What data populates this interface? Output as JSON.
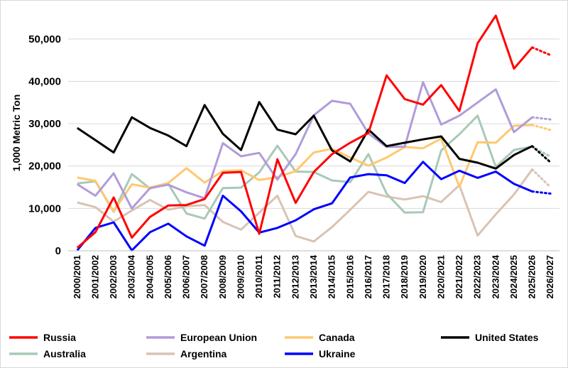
{
  "chart_data": {
    "type": "line",
    "ylabel": "1,000 Metric Ton",
    "xlabel": "",
    "ylim": [
      0,
      55000
    ],
    "yticks": [
      0,
      10000,
      20000,
      30000,
      40000,
      50000
    ],
    "ytick_labels": [
      "0",
      "10,000",
      "20,000",
      "30,000",
      "40,000",
      "50,000"
    ],
    "grid": "horizontal",
    "legend_position": "bottom",
    "categories": [
      "2000/2001",
      "2001/2002",
      "2002/2003",
      "2003/2004",
      "2004/2005",
      "2005/2006",
      "2006/2007",
      "2007/2008",
      "2008/2009",
      "2009/2010",
      "2010/2011",
      "2011/2012",
      "2012/2013",
      "2013/2014",
      "2014/2015",
      "2015/2016",
      "2016/2017",
      "2017/2018",
      "2018/2019",
      "2019/2020",
      "2020/2021",
      "2021/2022",
      "2022/2023",
      "2023/2024",
      "2024/2025",
      "2025/2026",
      "2026/2027"
    ],
    "forecast_note": "Final segment (2025/2026 to 2026/2027) drawn as dotted line",
    "series": [
      {
        "name": "Russia",
        "color": "#ff0000",
        "values": [
          700,
          4400,
          12600,
          3100,
          8000,
          10700,
          10800,
          12200,
          18400,
          18600,
          4000,
          21600,
          11300,
          18600,
          22800,
          25500,
          27800,
          41400,
          35800,
          34500,
          39100,
          33000,
          49000,
          55500,
          43000,
          48000,
          46200
        ]
      },
      {
        "name": "European Union",
        "color": "#b19cd9",
        "values": [
          15700,
          13000,
          18300,
          10000,
          14800,
          15600,
          13800,
          12400,
          25400,
          22300,
          23100,
          16800,
          22800,
          32000,
          35400,
          34700,
          27700,
          24500,
          24600,
          39800,
          29800,
          31900,
          35000,
          38100,
          28000,
          31500,
          31000
        ]
      },
      {
        "name": "Canada",
        "color": "#ffc870",
        "values": [
          17300,
          16500,
          9300,
          15700,
          14900,
          16000,
          19500,
          16100,
          18800,
          19000,
          16700,
          17400,
          18800,
          23200,
          24100,
          22000,
          20100,
          22000,
          24500,
          24200,
          26500,
          15100,
          25600,
          25500,
          29500,
          29700,
          28500
        ]
      },
      {
        "name": "United States",
        "color": "#000000",
        "values": [
          29000,
          26100,
          23200,
          31500,
          29000,
          27200,
          24700,
          34400,
          27600,
          23800,
          35100,
          28600,
          27500,
          31900,
          23700,
          21100,
          28600,
          24700,
          25500,
          26300,
          27000,
          21700,
          20800,
          19400,
          22600,
          24700,
          20900
        ]
      },
      {
        "name": "Australia",
        "color": "#a9c9b7",
        "values": [
          15900,
          16400,
          9200,
          18100,
          14700,
          15800,
          8800,
          7600,
          14800,
          14900,
          18500,
          24800,
          18700,
          18600,
          16600,
          16200,
          22800,
          13500,
          9000,
          9100,
          23700,
          27500,
          31900,
          19800,
          23800,
          24600,
          22200
        ]
      },
      {
        "name": "Argentina",
        "color": "#d9c3b3",
        "values": [
          11400,
          10300,
          6900,
          9500,
          12000,
          9700,
          10500,
          10800,
          6800,
          5000,
          9000,
          13000,
          3500,
          2200,
          5600,
          9700,
          13900,
          12800,
          12100,
          12900,
          11500,
          15500,
          3600,
          8600,
          13300,
          19200,
          15000
        ]
      },
      {
        "name": "Ukraine",
        "color": "#0000ff",
        "values": [
          100,
          5400,
          6700,
          100,
          4400,
          6400,
          3400,
          1200,
          13000,
          9300,
          4300,
          5400,
          7200,
          9800,
          11200,
          17300,
          18100,
          17800,
          16000,
          21000,
          16900,
          18900,
          17200,
          18700,
          15800,
          14000,
          13500
        ]
      }
    ]
  }
}
